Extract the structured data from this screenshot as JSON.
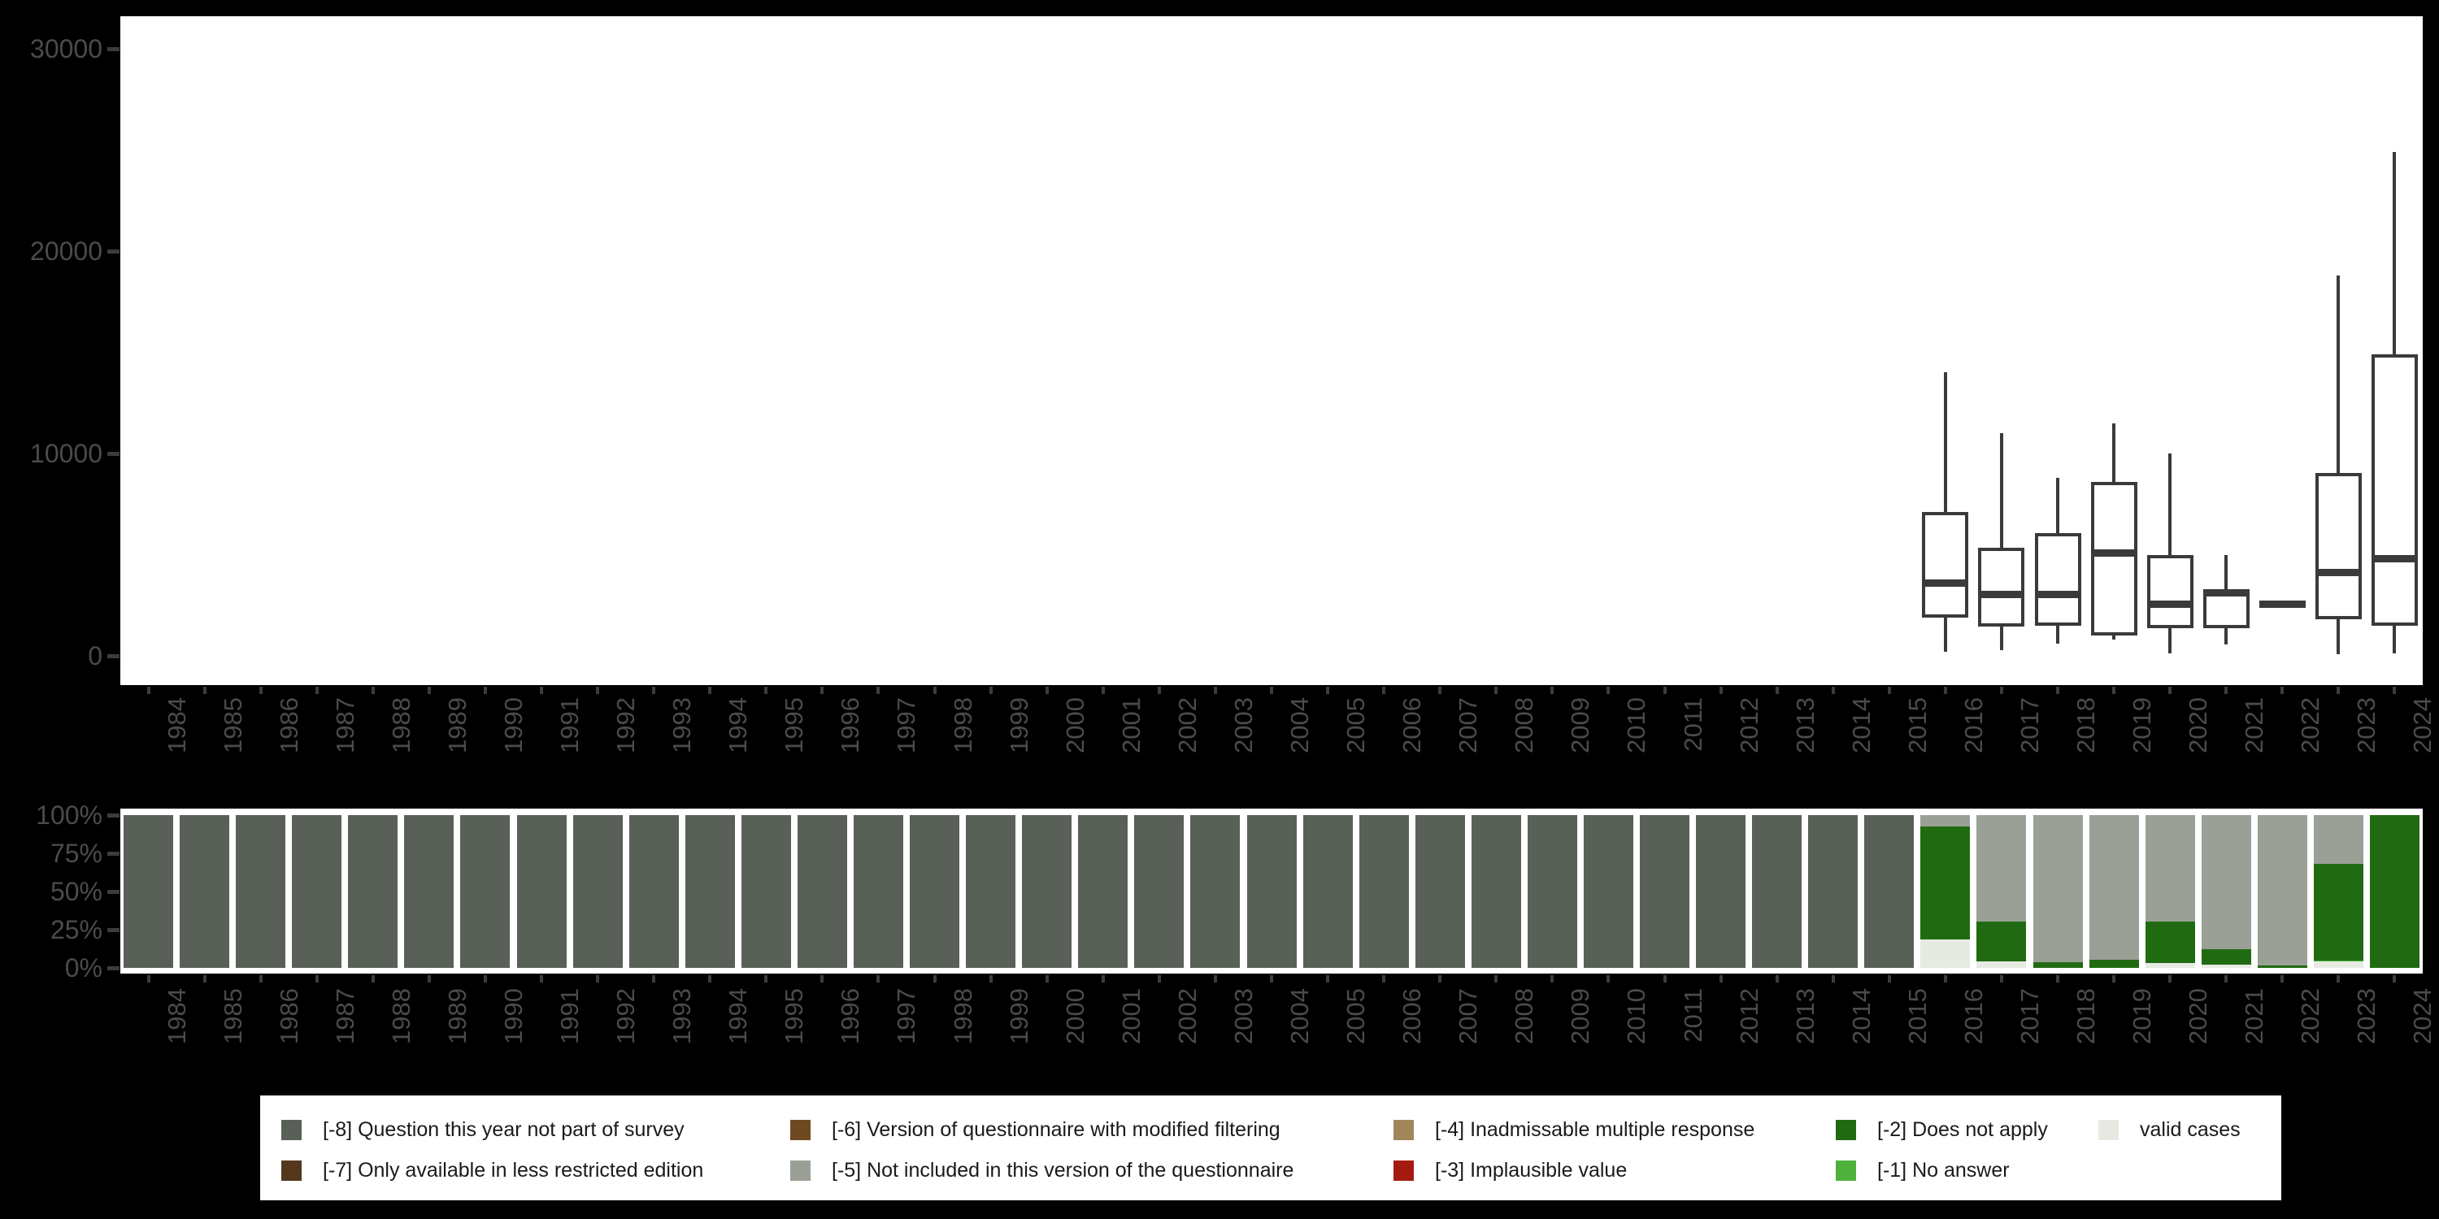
{
  "colors": {
    "m8": "#586057",
    "m7": "#54371d",
    "m6": "#6f4a21",
    "m5": "#9ba096",
    "m4": "#a1865a",
    "m3": "#a51b12",
    "m2": "#206b12",
    "m1": "#4db13c",
    "valid": "#e6eae2",
    "box_stroke": "#3a3a3a",
    "axis_label": "#4b4b4b",
    "tick": "#3c3c3c",
    "panel_bg": "#ffffff",
    "page_bg": "#000000"
  },
  "years": [
    1984,
    1985,
    1986,
    1987,
    1988,
    1989,
    1990,
    1991,
    1992,
    1993,
    1994,
    1995,
    1996,
    1997,
    1998,
    1999,
    2000,
    2001,
    2002,
    2003,
    2004,
    2005,
    2006,
    2007,
    2008,
    2009,
    2010,
    2011,
    2012,
    2013,
    2014,
    2015,
    2016,
    2017,
    2018,
    2019,
    2020,
    2021,
    2022,
    2023,
    2024
  ],
  "chart_data": [
    {
      "type": "boxplot",
      "title": "",
      "xlabel": "",
      "ylabel": "",
      "ylim": [
        0,
        30000
      ],
      "grid": "off",
      "yticks": [
        {
          "v": 0,
          "label": "0"
        },
        {
          "v": 10000,
          "label": "10000"
        },
        {
          "v": 20000,
          "label": "20000"
        },
        {
          "v": 30000,
          "label": "30000"
        }
      ],
      "boxes": [
        {
          "year": 2016,
          "whisker_low": 200,
          "q1": 1900,
          "median": 3600,
          "q3": 7100,
          "whisker_high": 14000
        },
        {
          "year": 2017,
          "whisker_low": 280,
          "q1": 1450,
          "median": 3050,
          "q3": 5350,
          "whisker_high": 11000
        },
        {
          "year": 2018,
          "whisker_low": 600,
          "q1": 1490,
          "median": 3050,
          "q3": 6050,
          "whisker_high": 8800
        },
        {
          "year": 2019,
          "whisker_low": 800,
          "q1": 1000,
          "median": 5100,
          "q3": 8600,
          "whisker_high": 11500
        },
        {
          "year": 2020,
          "whisker_low": 120,
          "q1": 1370,
          "median": 2570,
          "q3": 5000,
          "whisker_high": 10000
        },
        {
          "year": 2021,
          "whisker_low": 560,
          "q1": 1370,
          "median": 3100,
          "q3": 3250,
          "whisker_high": 5000
        },
        {
          "year": 2022,
          "whisker_low": 2570,
          "q1": 2570,
          "median": 2570,
          "q3": 2570,
          "whisker_high": 2570
        },
        {
          "year": 2023,
          "whisker_low": 100,
          "q1": 1800,
          "median": 4100,
          "q3": 9050,
          "whisker_high": 18800
        },
        {
          "year": 2024,
          "whisker_low": 120,
          "q1": 1500,
          "median": 4800,
          "q3": 14900,
          "whisker_high": 24900
        }
      ]
    },
    {
      "type": "bar",
      "subtype": "stacked_percent",
      "title": "",
      "xlabel": "",
      "ylabel": "",
      "ylim": [
        0,
        100
      ],
      "grid": "off",
      "yticks": [
        {
          "v": 100,
          "label": "100%"
        },
        {
          "v": 75,
          "label": "75%"
        },
        {
          "v": 50,
          "label": "50%"
        },
        {
          "v": 25,
          "label": "25%"
        },
        {
          "v": 0,
          "label": "0%"
        }
      ],
      "bars": [
        {
          "year": 1984,
          "segments": [
            [
              "m8",
              100
            ]
          ]
        },
        {
          "year": 1985,
          "segments": [
            [
              "m8",
              100
            ]
          ]
        },
        {
          "year": 1986,
          "segments": [
            [
              "m8",
              100
            ]
          ]
        },
        {
          "year": 1987,
          "segments": [
            [
              "m8",
              100
            ]
          ]
        },
        {
          "year": 1988,
          "segments": [
            [
              "m8",
              100
            ]
          ]
        },
        {
          "year": 1989,
          "segments": [
            [
              "m8",
              100
            ]
          ]
        },
        {
          "year": 1990,
          "segments": [
            [
              "m8",
              100
            ]
          ]
        },
        {
          "year": 1991,
          "segments": [
            [
              "m8",
              100
            ]
          ]
        },
        {
          "year": 1992,
          "segments": [
            [
              "m8",
              100
            ]
          ]
        },
        {
          "year": 1993,
          "segments": [
            [
              "m8",
              100
            ]
          ]
        },
        {
          "year": 1994,
          "segments": [
            [
              "m8",
              100
            ]
          ]
        },
        {
          "year": 1995,
          "segments": [
            [
              "m8",
              100
            ]
          ]
        },
        {
          "year": 1996,
          "segments": [
            [
              "m8",
              100
            ]
          ]
        },
        {
          "year": 1997,
          "segments": [
            [
              "m8",
              100
            ]
          ]
        },
        {
          "year": 1998,
          "segments": [
            [
              "m8",
              100
            ]
          ]
        },
        {
          "year": 1999,
          "segments": [
            [
              "m8",
              100
            ]
          ]
        },
        {
          "year": 2000,
          "segments": [
            [
              "m8",
              100
            ]
          ]
        },
        {
          "year": 2001,
          "segments": [
            [
              "m8",
              100
            ]
          ]
        },
        {
          "year": 2002,
          "segments": [
            [
              "m8",
              100
            ]
          ]
        },
        {
          "year": 2003,
          "segments": [
            [
              "m8",
              100
            ]
          ]
        },
        {
          "year": 2004,
          "segments": [
            [
              "m8",
              100
            ]
          ]
        },
        {
          "year": 2005,
          "segments": [
            [
              "m8",
              100
            ]
          ]
        },
        {
          "year": 2006,
          "segments": [
            [
              "m8",
              100
            ]
          ]
        },
        {
          "year": 2007,
          "segments": [
            [
              "m8",
              100
            ]
          ]
        },
        {
          "year": 2008,
          "segments": [
            [
              "m8",
              100
            ]
          ]
        },
        {
          "year": 2009,
          "segments": [
            [
              "m8",
              100
            ]
          ]
        },
        {
          "year": 2010,
          "segments": [
            [
              "m8",
              100
            ]
          ]
        },
        {
          "year": 2011,
          "segments": [
            [
              "m8",
              100
            ]
          ]
        },
        {
          "year": 2012,
          "segments": [
            [
              "m8",
              100
            ]
          ]
        },
        {
          "year": 2013,
          "segments": [
            [
              "m8",
              100
            ]
          ]
        },
        {
          "year": 2014,
          "segments": [
            [
              "m8",
              100
            ]
          ]
        },
        {
          "year": 2015,
          "segments": [
            [
              "m8",
              100
            ]
          ]
        },
        {
          "year": 2016,
          "segments": [
            [
              "m5",
              7.5
            ],
            [
              "m2",
              74
            ],
            [
              "valid",
              18.5
            ]
          ]
        },
        {
          "year": 2017,
          "segments": [
            [
              "m5",
              69.5
            ],
            [
              "m2",
              26
            ],
            [
              "valid",
              4.5
            ]
          ]
        },
        {
          "year": 2018,
          "segments": [
            [
              "m5",
              96.5
            ],
            [
              "m2",
              3.5
            ]
          ]
        },
        {
          "year": 2019,
          "segments": [
            [
              "m5",
              94.5
            ],
            [
              "m2",
              5.5
            ]
          ]
        },
        {
          "year": 2020,
          "segments": [
            [
              "m5",
              69.5
            ],
            [
              "m2",
              27.5
            ],
            [
              "valid",
              3
            ]
          ]
        },
        {
          "year": 2021,
          "segments": [
            [
              "m5",
              88
            ],
            [
              "m2",
              10
            ],
            [
              "valid",
              2
            ]
          ]
        },
        {
          "year": 2022,
          "segments": [
            [
              "m5",
              98.5
            ],
            [
              "m2",
              1.5
            ]
          ]
        },
        {
          "year": 2023,
          "segments": [
            [
              "m5",
              32
            ],
            [
              "m2",
              63
            ],
            [
              "m1",
              1
            ],
            [
              "valid",
              4
            ]
          ]
        },
        {
          "year": 2024,
          "segments": [
            [
              "m2",
              100
            ]
          ]
        }
      ]
    }
  ],
  "legend": {
    "items": [
      {
        "row": 0,
        "col": 0,
        "key": "m8",
        "label": "[-8] Question this year not part of survey"
      },
      {
        "row": 1,
        "col": 0,
        "key": "m7",
        "label": "[-7] Only available in less restricted edition"
      },
      {
        "row": 0,
        "col": 1,
        "key": "m6",
        "label": "[-6] Version of questionnaire with modified filtering"
      },
      {
        "row": 1,
        "col": 1,
        "key": "m5",
        "label": "[-5] Not included in this version of the questionnaire"
      },
      {
        "row": 0,
        "col": 2,
        "key": "m4",
        "label": "[-4] Inadmissable multiple response"
      },
      {
        "row": 1,
        "col": 2,
        "key": "m3",
        "label": "[-3] Implausible value"
      },
      {
        "row": 0,
        "col": 3,
        "key": "m2",
        "label": "[-2] Does not apply"
      },
      {
        "row": 1,
        "col": 3,
        "key": "m1",
        "label": "[-1] No answer"
      },
      {
        "row": 0,
        "col": 4,
        "key": "valid",
        "label": "valid cases"
      }
    ]
  }
}
